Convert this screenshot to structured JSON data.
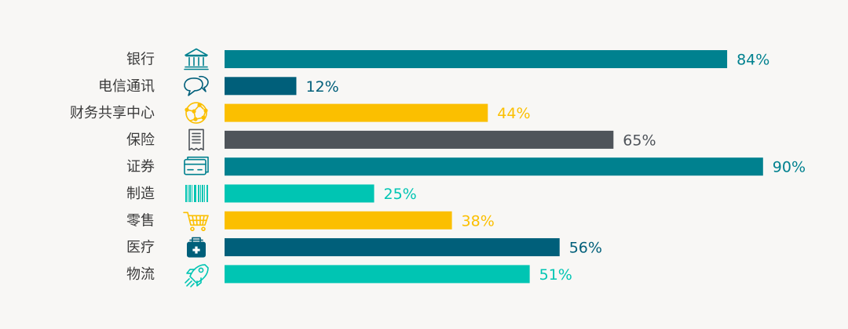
{
  "chart_data": {
    "type": "bar",
    "orientation": "horizontal",
    "categories": [
      "银行",
      "电信通讯",
      "财务共享中心",
      "保险",
      "证券",
      "制造",
      "零售",
      "医疗",
      "物流"
    ],
    "values": [
      84,
      12,
      44,
      65,
      90,
      25,
      38,
      56,
      51
    ],
    "value_labels": [
      "84%",
      "12%",
      "44%",
      "65%",
      "90%",
      "25%",
      "38%",
      "56%",
      "51%"
    ],
    "unit": "%",
    "xlim": [
      0,
      100
    ],
    "bar_colors": [
      "#00818f",
      "#005f7a",
      "#fbbf00",
      "#4f545a",
      "#00818f",
      "#00c5b3",
      "#fbbf00",
      "#005f7a",
      "#00c5b3"
    ],
    "label_colors": [
      "#00818f",
      "#005f7a",
      "#fbbf00",
      "#4f545a",
      "#00818f",
      "#00c5b3",
      "#fbbf00",
      "#005f7a",
      "#00c5b3"
    ],
    "icons": [
      "bank-icon",
      "chat-bubbles-icon",
      "globe-network-icon",
      "receipt-icon",
      "credit-card-icon",
      "barcode-icon",
      "shopping-cart-icon",
      "medical-kit-icon",
      "rocket-icon"
    ],
    "grid": false,
    "legend": "none",
    "title": "",
    "xlabel": "",
    "ylabel": ""
  }
}
